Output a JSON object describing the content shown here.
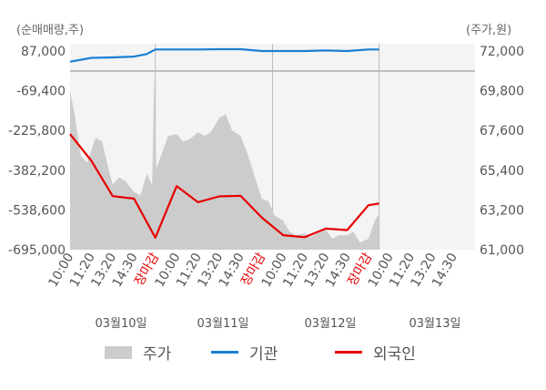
{
  "chart_data": {
    "type": "line",
    "left_axis": {
      "unit": "(순매매량,주)",
      "ticks": [
        "87,000",
        "-69,400",
        "-225,800",
        "-382,200",
        "-538,600",
        "-695,000"
      ],
      "ylim": [
        -695000,
        87000
      ]
    },
    "right_axis": {
      "unit": "(주가,원)",
      "ticks": [
        "72,000",
        "69,800",
        "67,600",
        "65,400",
        "63,200",
        "61,000"
      ],
      "ylim": [
        61000,
        72000
      ]
    },
    "x_ticks": [
      {
        "label": "10:00",
        "red": false
      },
      {
        "label": "11:20",
        "red": false
      },
      {
        "label": "13:20",
        "red": false
      },
      {
        "label": "14:30",
        "red": false
      },
      {
        "label": "장마감",
        "red": true
      },
      {
        "label": "10:00",
        "red": false
      },
      {
        "label": "11:20",
        "red": false
      },
      {
        "label": "13:20",
        "red": false
      },
      {
        "label": "14:30",
        "red": false
      },
      {
        "label": "장마감",
        "red": true
      },
      {
        "label": "10:00",
        "red": false
      },
      {
        "label": "11:20",
        "red": false
      },
      {
        "label": "13:20",
        "red": false
      },
      {
        "label": "14:30",
        "red": false
      },
      {
        "label": "장마감",
        "red": true
      },
      {
        "label": "10:00",
        "red": false
      },
      {
        "label": "11:20",
        "red": false
      },
      {
        "label": "13:20",
        "red": false
      },
      {
        "label": "14:30",
        "red": false
      }
    ],
    "dates": [
      "03월10일",
      "03월11일",
      "03월12일",
      "03월13일"
    ],
    "legend": [
      "주가",
      "기관",
      "외국인"
    ],
    "colors": {
      "price": "#cccccc",
      "institution": "#1a7fd4",
      "foreign": "#e60000"
    },
    "series": [
      {
        "name": "외국인",
        "axis": "left",
        "points": [
          [
            0,
            -240000
          ],
          [
            1,
            -345000
          ],
          [
            2,
            -484000
          ],
          [
            3,
            -494000
          ],
          [
            4,
            -648000
          ],
          [
            5,
            -445000
          ],
          [
            6,
            -508000
          ],
          [
            7,
            -485000
          ],
          [
            8,
            -483000
          ],
          [
            9,
            -569000
          ],
          [
            10,
            -638000
          ],
          [
            11,
            -646000
          ],
          [
            12,
            -612000
          ],
          [
            13,
            -618000
          ],
          [
            14,
            -520000
          ],
          [
            14.5,
            -513000
          ]
        ]
      },
      {
        "name": "기관",
        "axis": "left",
        "points": [
          [
            0,
            45000
          ],
          [
            1,
            60000
          ],
          [
            2,
            62000
          ],
          [
            3,
            65000
          ],
          [
            3.6,
            75000
          ],
          [
            4,
            93000
          ],
          [
            5,
            93000
          ],
          [
            6,
            93000
          ],
          [
            7,
            94000
          ],
          [
            8,
            94000
          ],
          [
            9,
            87000
          ],
          [
            10,
            87000
          ],
          [
            11,
            87000
          ],
          [
            12,
            89000
          ],
          [
            13,
            87000
          ],
          [
            14,
            93000
          ],
          [
            14.5,
            93000
          ]
        ]
      },
      {
        "name": "주가",
        "axis": "right",
        "points": [
          [
            0,
            69800
          ],
          [
            0.2,
            68600
          ],
          [
            0.5,
            66200
          ],
          [
            0.8,
            65800
          ],
          [
            1.2,
            67200
          ],
          [
            1.5,
            67000
          ],
          [
            1.8,
            65500
          ],
          [
            2,
            64600
          ],
          [
            2.3,
            65000
          ],
          [
            2.6,
            64800
          ],
          [
            3,
            64200
          ],
          [
            3.3,
            64000
          ],
          [
            3.6,
            65200
          ],
          [
            3.85,
            64600
          ],
          [
            3.95,
            70600
          ],
          [
            4.05,
            65500
          ],
          [
            4.3,
            66300
          ],
          [
            4.6,
            67300
          ],
          [
            5,
            67400
          ],
          [
            5.3,
            67000
          ],
          [
            5.6,
            67100
          ],
          [
            6,
            67500
          ],
          [
            6.3,
            67300
          ],
          [
            6.6,
            67500
          ],
          [
            7,
            68300
          ],
          [
            7.3,
            68500
          ],
          [
            7.6,
            67600
          ],
          [
            8,
            67300
          ],
          [
            8.3,
            66400
          ],
          [
            8.6,
            65300
          ],
          [
            9,
            63800
          ],
          [
            9.3,
            63700
          ],
          [
            9.6,
            62900
          ],
          [
            10,
            62600
          ],
          [
            10.3,
            62000
          ],
          [
            10.6,
            61800
          ],
          [
            11,
            61900
          ],
          [
            11.3,
            61700
          ],
          [
            11.6,
            61900
          ],
          [
            12,
            62100
          ],
          [
            12.3,
            61600
          ],
          [
            12.6,
            61800
          ],
          [
            13,
            61800
          ],
          [
            13.3,
            62000
          ],
          [
            13.6,
            61400
          ],
          [
            14,
            61600
          ],
          [
            14.3,
            62600
          ],
          [
            14.5,
            63000
          ]
        ]
      }
    ]
  }
}
